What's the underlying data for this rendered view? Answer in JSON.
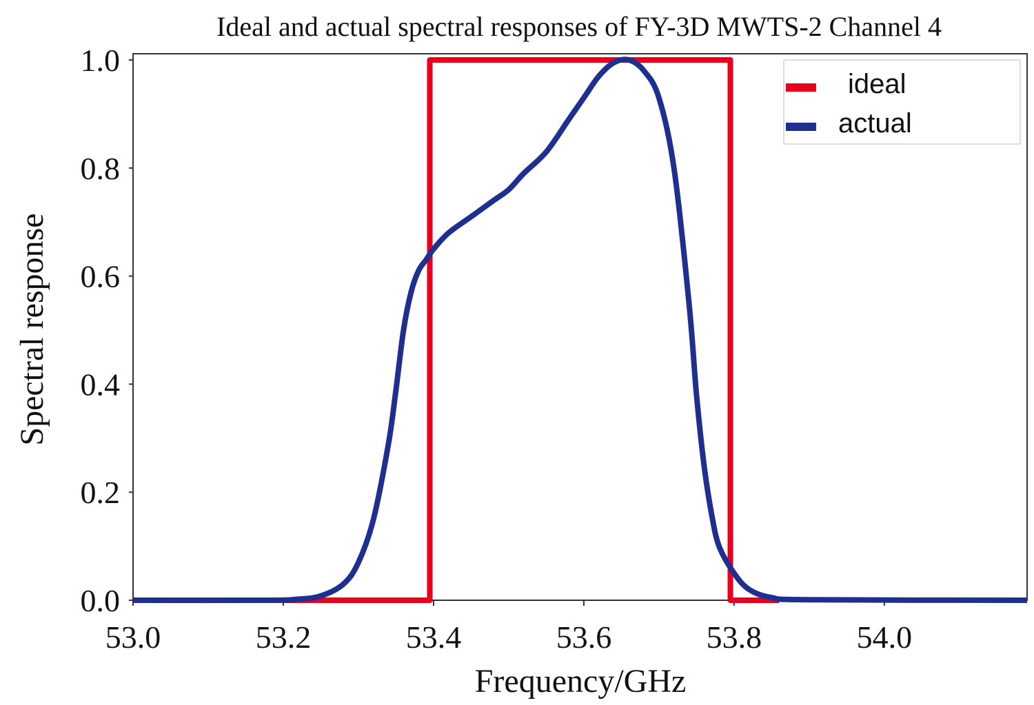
{
  "chart_data": {
    "type": "line",
    "title": "Ideal and actual spectral responses of FY-3D MWTS-2 Channel 4",
    "xlabel": "Frequency/GHz",
    "ylabel": "Spectral response",
    "xlim": [
      53.0,
      54.19
    ],
    "ylim": [
      0.0,
      1.0
    ],
    "x_ticks": [
      "53.0",
      "53.2",
      "53.4",
      "53.6",
      "53.8",
      "54.0"
    ],
    "y_ticks": [
      "0.0",
      "0.2",
      "0.4",
      "0.6",
      "0.8",
      "1.0"
    ],
    "grid": false,
    "legend_position": "top-right",
    "series": [
      {
        "name": "ideal",
        "color": "#e8001c",
        "x": [
          53.0,
          53.395,
          53.395,
          53.795,
          53.795,
          53.86
        ],
        "y": [
          0.0,
          0.0,
          1.0,
          1.0,
          0.0,
          0.0
        ]
      },
      {
        "name": "actual",
        "color": "#1f2f8f",
        "x": [
          53.0,
          53.18,
          53.22,
          53.25,
          53.28,
          53.3,
          53.32,
          53.34,
          53.35,
          53.36,
          53.37,
          53.38,
          53.39,
          53.4,
          53.42,
          53.45,
          53.48,
          53.5,
          53.52,
          53.55,
          53.58,
          53.6,
          53.62,
          53.64,
          53.66,
          53.68,
          53.7,
          53.72,
          53.74,
          53.75,
          53.76,
          53.77,
          53.78,
          53.8,
          53.82,
          53.85,
          53.9,
          54.19
        ],
        "y": [
          0.0,
          0.0,
          0.002,
          0.008,
          0.03,
          0.07,
          0.15,
          0.29,
          0.39,
          0.5,
          0.57,
          0.61,
          0.63,
          0.65,
          0.68,
          0.71,
          0.74,
          0.76,
          0.79,
          0.83,
          0.89,
          0.93,
          0.97,
          0.995,
          1.0,
          0.98,
          0.93,
          0.8,
          0.55,
          0.38,
          0.25,
          0.16,
          0.1,
          0.05,
          0.02,
          0.005,
          0.001,
          0.0
        ]
      }
    ]
  }
}
